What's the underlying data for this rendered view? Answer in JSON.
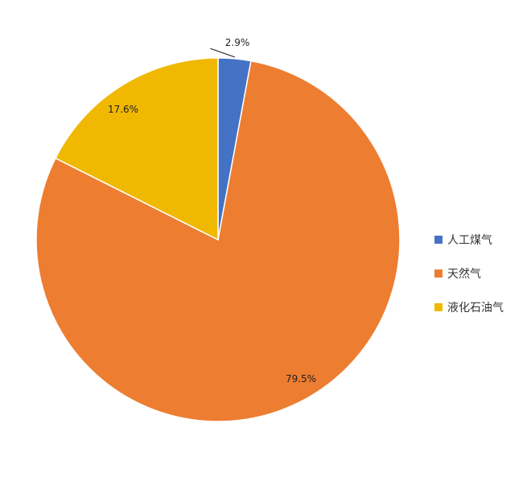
{
  "chart_data": {
    "type": "pie",
    "categories": [
      "人工煤气",
      "天然气",
      "液化石油气"
    ],
    "values": [
      2.9,
      79.5,
      17.6
    ],
    "labels": [
      "2.9%",
      "79.5%",
      "17.6%"
    ],
    "colors": [
      "#4472C4",
      "#ED7D31",
      "#F0B800"
    ],
    "legend_position": "right",
    "start_angle_deg": 0,
    "direction": "clockwise"
  }
}
